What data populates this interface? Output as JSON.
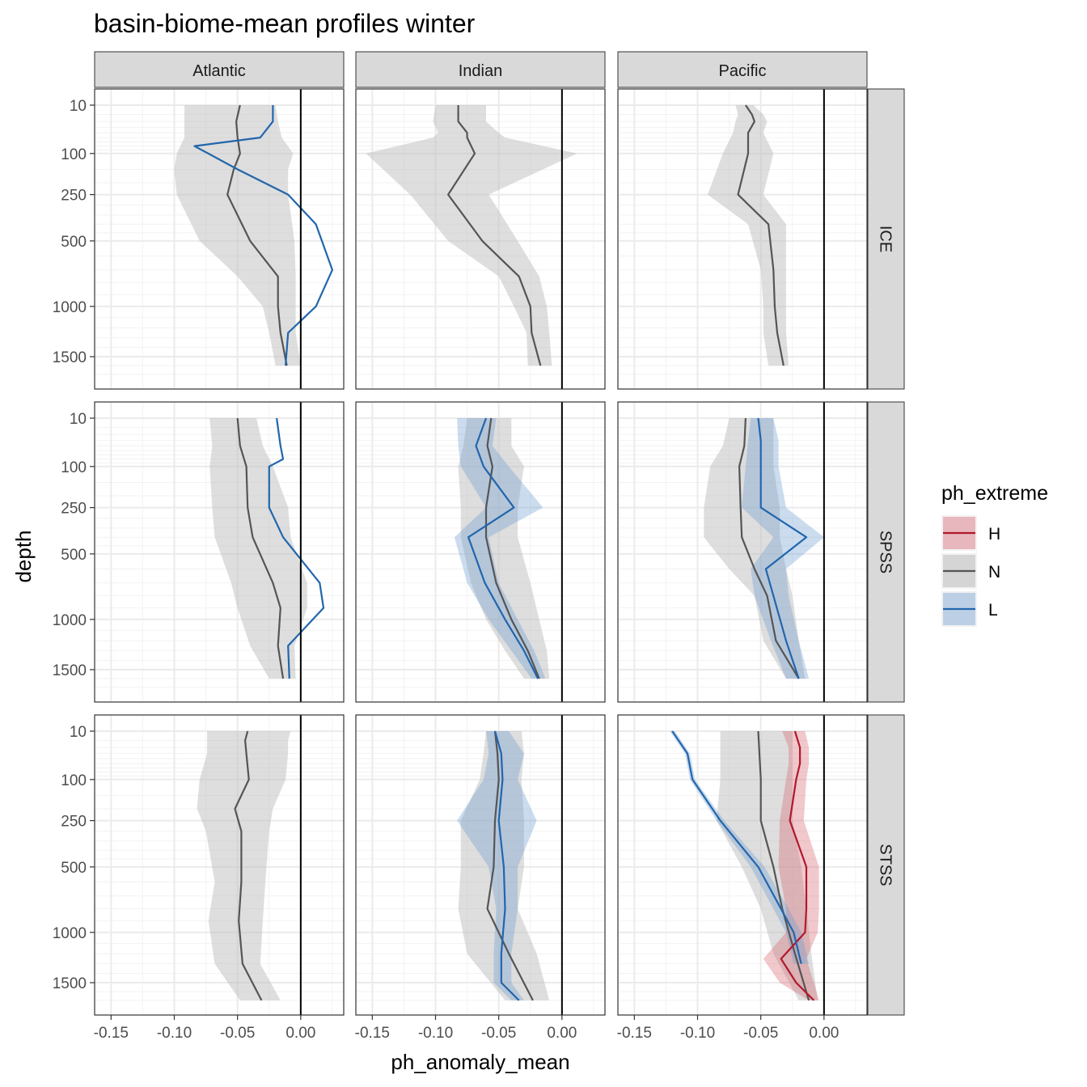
{
  "chart_data": {
    "type": "line",
    "title": "basin-biome-mean profiles winter",
    "xlabel": "ph_anomaly_mean",
    "ylabel": "depth",
    "xlim": [
      -0.163,
      0.034
    ],
    "x_ticks": [
      -0.15,
      -0.1,
      -0.05,
      0.0
    ],
    "x_tick_labels": [
      "-0.15",
      "-0.10",
      "-0.05",
      "0.00"
    ],
    "y_scale": "reversed sqrt",
    "y_ticks": [
      10,
      100,
      250,
      500,
      1000,
      1500
    ],
    "y_tick_labels": [
      "10",
      "100",
      "250",
      "500",
      "1000",
      "1500"
    ],
    "grid": true,
    "reference_line_x": 0,
    "columns": [
      "Atlantic",
      "Indian",
      "Pacific"
    ],
    "rows": [
      "ICE",
      "SPSS",
      "STSS"
    ],
    "legend": {
      "title": "ph_extreme",
      "position": "right",
      "entries": [
        {
          "key": "H",
          "label": "H",
          "color": "#b2182b"
        },
        {
          "key": "N",
          "label": "N",
          "color": "#555555"
        },
        {
          "key": "L",
          "label": "L",
          "color": "#2166ac"
        }
      ]
    },
    "colors": {
      "H": "#b2182b",
      "H_fill": "#d6606d",
      "N": "#555555",
      "N_fill": "#bdbdbd",
      "L": "#2166ac",
      "L_fill": "#6b9bd2"
    },
    "panels": [
      {
        "basin": "Atlantic",
        "biome": "ICE",
        "series": [
          {
            "name": "N",
            "depth": [
              10,
              30,
              60,
              100,
              150,
              250,
              500,
              750,
              1000,
              1250,
              1600
            ],
            "mean": [
              -0.048,
              -0.051,
              -0.05,
              -0.048,
              -0.053,
              -0.058,
              -0.04,
              -0.018,
              -0.018,
              -0.016,
              -0.011
            ],
            "lower": [
              -0.092,
              -0.092,
              -0.092,
              -0.098,
              -0.1,
              -0.098,
              -0.08,
              -0.05,
              -0.03,
              -0.025,
              -0.02
            ],
            "upper": [
              -0.02,
              -0.018,
              -0.015,
              -0.006,
              -0.01,
              -0.01,
              -0.005,
              -0.004,
              -0.004,
              -0.004,
              0.0
            ]
          },
          {
            "name": "L",
            "depth": [
              10,
              30,
              60,
              80,
              150,
              250,
              400,
              700,
              1000,
              1250,
              1600
            ],
            "mean": [
              -0.022,
              -0.022,
              -0.032,
              -0.084,
              -0.05,
              -0.01,
              0.012,
              0.025,
              0.012,
              -0.01,
              -0.012
            ]
          }
        ]
      },
      {
        "basin": "Indian",
        "biome": "ICE",
        "series": [
          {
            "name": "N",
            "depth": [
              10,
              30,
              50,
              60,
              100,
              250,
              500,
              750,
              1000,
              1250,
              1600
            ],
            "mean": [
              -0.082,
              -0.082,
              -0.075,
              -0.075,
              -0.069,
              -0.09,
              -0.063,
              -0.034,
              -0.025,
              -0.024,
              -0.017
            ],
            "lower": [
              -0.1,
              -0.102,
              -0.098,
              -0.102,
              -0.155,
              -0.12,
              -0.09,
              -0.05,
              -0.038,
              -0.028,
              -0.027
            ],
            "upper": [
              -0.06,
              -0.06,
              -0.05,
              -0.045,
              0.012,
              -0.058,
              -0.035,
              -0.018,
              -0.012,
              -0.01,
              -0.008
            ]
          }
        ]
      },
      {
        "basin": "Pacific",
        "biome": "ICE",
        "series": [
          {
            "name": "N",
            "depth": [
              10,
              20,
              30,
              50,
              100,
              250,
              400,
              700,
              1000,
              1250,
              1600
            ],
            "mean": [
              -0.062,
              -0.057,
              -0.055,
              -0.06,
              -0.06,
              -0.068,
              -0.044,
              -0.04,
              -0.039,
              -0.037,
              -0.032
            ],
            "lower": [
              -0.07,
              -0.068,
              -0.07,
              -0.072,
              -0.08,
              -0.092,
              -0.06,
              -0.05,
              -0.048,
              -0.048,
              -0.044
            ],
            "upper": [
              -0.056,
              -0.048,
              -0.045,
              -0.048,
              -0.04,
              -0.048,
              -0.03,
              -0.03,
              -0.03,
              -0.03,
              -0.028
            ]
          }
        ]
      },
      {
        "basin": "Atlantic",
        "biome": "SPSS",
        "series": [
          {
            "name": "N",
            "depth": [
              10,
              50,
              100,
              250,
              400,
              700,
              900,
              1250,
              1600
            ],
            "mean": [
              -0.05,
              -0.048,
              -0.043,
              -0.042,
              -0.038,
              -0.022,
              -0.016,
              -0.018,
              -0.014
            ],
            "lower": [
              -0.072,
              -0.07,
              -0.072,
              -0.07,
              -0.068,
              -0.055,
              -0.05,
              -0.04,
              -0.025
            ],
            "upper": [
              -0.035,
              -0.03,
              -0.022,
              -0.01,
              -0.008,
              0.005,
              0.005,
              -0.005,
              -0.004
            ]
          },
          {
            "name": "L",
            "depth": [
              10,
              50,
              80,
              100,
              250,
              400,
              700,
              900,
              1250,
              1600
            ],
            "mean": [
              -0.019,
              -0.016,
              -0.014,
              -0.025,
              -0.025,
              -0.014,
              0.015,
              0.018,
              -0.01,
              -0.009
            ]
          }
        ]
      },
      {
        "basin": "Indian",
        "biome": "SPSS",
        "series": [
          {
            "name": "N",
            "depth": [
              10,
              50,
              100,
              250,
              400,
              700,
              1000,
              1300,
              1600
            ],
            "mean": [
              -0.056,
              -0.059,
              -0.055,
              -0.06,
              -0.06,
              -0.052,
              -0.04,
              -0.027,
              -0.018
            ],
            "lower": [
              -0.075,
              -0.078,
              -0.082,
              -0.08,
              -0.08,
              -0.072,
              -0.06,
              -0.045,
              -0.03
            ],
            "upper": [
              -0.04,
              -0.04,
              -0.03,
              -0.035,
              -0.035,
              -0.025,
              -0.018,
              -0.012,
              -0.01
            ]
          },
          {
            "name": "L",
            "depth": [
              10,
              50,
              100,
              250,
              400,
              700,
              1000,
              1300,
              1600
            ],
            "mean": [
              -0.06,
              -0.068,
              -0.062,
              -0.038,
              -0.074,
              -0.061,
              -0.045,
              -0.03,
              -0.019
            ],
            "lower": [
              -0.083,
              -0.082,
              -0.08,
              -0.06,
              -0.085,
              -0.075,
              -0.058,
              -0.04,
              -0.024
            ],
            "upper": [
              -0.052,
              -0.055,
              -0.042,
              -0.015,
              -0.058,
              -0.05,
              -0.035,
              -0.022,
              -0.013
            ]
          }
        ]
      },
      {
        "basin": "Pacific",
        "biome": "SPSS",
        "series": [
          {
            "name": "N",
            "depth": [
              10,
              50,
              100,
              250,
              400,
              600,
              800,
              1200,
              1600
            ],
            "mean": [
              -0.062,
              -0.063,
              -0.067,
              -0.066,
              -0.065,
              -0.055,
              -0.045,
              -0.038,
              -0.02
            ],
            "lower": [
              -0.075,
              -0.08,
              -0.09,
              -0.095,
              -0.095,
              -0.075,
              -0.055,
              -0.048,
              -0.03
            ],
            "upper": [
              -0.04,
              -0.04,
              -0.04,
              -0.035,
              -0.035,
              -0.03,
              -0.025,
              -0.02,
              -0.015
            ]
          },
          {
            "name": "L",
            "depth": [
              10,
              40,
              100,
              250,
              400,
              600,
              800,
              1200,
              1600
            ],
            "mean": [
              -0.052,
              -0.05,
              -0.05,
              -0.05,
              -0.014,
              -0.046,
              -0.04,
              -0.03,
              -0.02
            ],
            "lower": [
              -0.058,
              -0.06,
              -0.062,
              -0.065,
              -0.04,
              -0.058,
              -0.055,
              -0.042,
              -0.03
            ],
            "upper": [
              -0.04,
              -0.036,
              -0.036,
              -0.03,
              0.0,
              -0.03,
              -0.028,
              -0.02,
              -0.012
            ]
          }
        ]
      },
      {
        "basin": "Atlantic",
        "biome": "STSS",
        "series": [
          {
            "name": "N",
            "depth": [
              10,
              20,
              40,
              100,
              200,
              300,
              600,
              900,
              1300,
              1700
            ],
            "mean": [
              -0.042,
              -0.044,
              -0.043,
              -0.041,
              -0.052,
              -0.047,
              -0.047,
              -0.049,
              -0.046,
              -0.031
            ],
            "lower": [
              -0.074,
              -0.074,
              -0.074,
              -0.08,
              -0.082,
              -0.075,
              -0.068,
              -0.073,
              -0.068,
              -0.048
            ],
            "upper": [
              -0.008,
              -0.01,
              -0.01,
              -0.012,
              -0.022,
              -0.025,
              -0.028,
              -0.03,
              -0.032,
              -0.016
            ]
          }
        ]
      },
      {
        "basin": "Indian",
        "biome": "STSS",
        "series": [
          {
            "name": "N",
            "depth": [
              10,
              40,
              100,
              250,
              500,
              800,
              1200,
              1700
            ],
            "mean": [
              -0.053,
              -0.051,
              -0.05,
              -0.053,
              -0.054,
              -0.059,
              -0.042,
              -0.023
            ],
            "lower": [
              -0.06,
              -0.062,
              -0.065,
              -0.08,
              -0.08,
              -0.082,
              -0.075,
              -0.045
            ],
            "upper": [
              -0.032,
              -0.03,
              -0.032,
              -0.03,
              -0.03,
              -0.035,
              -0.02,
              -0.01
            ]
          },
          {
            "name": "L",
            "depth": [
              10,
              40,
              100,
              250,
              500,
              800,
              1200,
              1500,
              1700
            ],
            "mean": [
              -0.053,
              -0.048,
              -0.047,
              -0.05,
              -0.046,
              -0.045,
              -0.048,
              -0.048,
              -0.034
            ],
            "lower": [
              -0.06,
              -0.058,
              -0.062,
              -0.083,
              -0.058,
              -0.052,
              -0.054,
              -0.054,
              -0.04
            ],
            "upper": [
              -0.042,
              -0.03,
              -0.035,
              -0.02,
              -0.035,
              -0.035,
              -0.04,
              -0.04,
              -0.03
            ]
          }
        ]
      },
      {
        "basin": "Pacific",
        "biome": "STSS",
        "series": [
          {
            "name": "N",
            "depth": [
              10,
              100,
              250,
              500,
              800,
              1200,
              1700
            ],
            "mean": [
              -0.052,
              -0.05,
              -0.05,
              -0.04,
              -0.033,
              -0.023,
              -0.012
            ],
            "lower": [
              -0.082,
              -0.082,
              -0.085,
              -0.065,
              -0.05,
              -0.04,
              -0.02
            ],
            "upper": [
              -0.025,
              -0.025,
              -0.025,
              -0.018,
              -0.014,
              -0.01,
              -0.005
            ]
          },
          {
            "name": "H",
            "depth": [
              10,
              30,
              60,
              100,
              250,
              500,
              800,
              1000,
              1250,
              1500,
              1700
            ],
            "mean": [
              -0.023,
              -0.019,
              -0.019,
              -0.022,
              -0.027,
              -0.014,
              -0.014,
              -0.015,
              -0.034,
              -0.022,
              -0.008
            ],
            "lower": [
              -0.033,
              -0.028,
              -0.028,
              -0.03,
              -0.035,
              -0.036,
              -0.03,
              -0.03,
              -0.048,
              -0.035,
              -0.012
            ],
            "upper": [
              -0.015,
              -0.012,
              -0.012,
              -0.014,
              -0.016,
              -0.004,
              -0.004,
              -0.005,
              -0.014,
              -0.008,
              -0.004
            ]
          },
          {
            "name": "L",
            "depth": [
              10,
              40,
              100,
              250,
              500,
              800,
              1000,
              1300
            ],
            "mean": [
              -0.12,
              -0.108,
              -0.104,
              -0.082,
              -0.052,
              -0.034,
              -0.024,
              -0.018
            ],
            "lower": [
              -0.122,
              -0.11,
              -0.106,
              -0.085,
              -0.058,
              -0.04,
              -0.03,
              -0.024
            ],
            "upper": [
              -0.118,
              -0.106,
              -0.102,
              -0.079,
              -0.047,
              -0.028,
              -0.018,
              -0.012
            ]
          }
        ]
      }
    ]
  }
}
